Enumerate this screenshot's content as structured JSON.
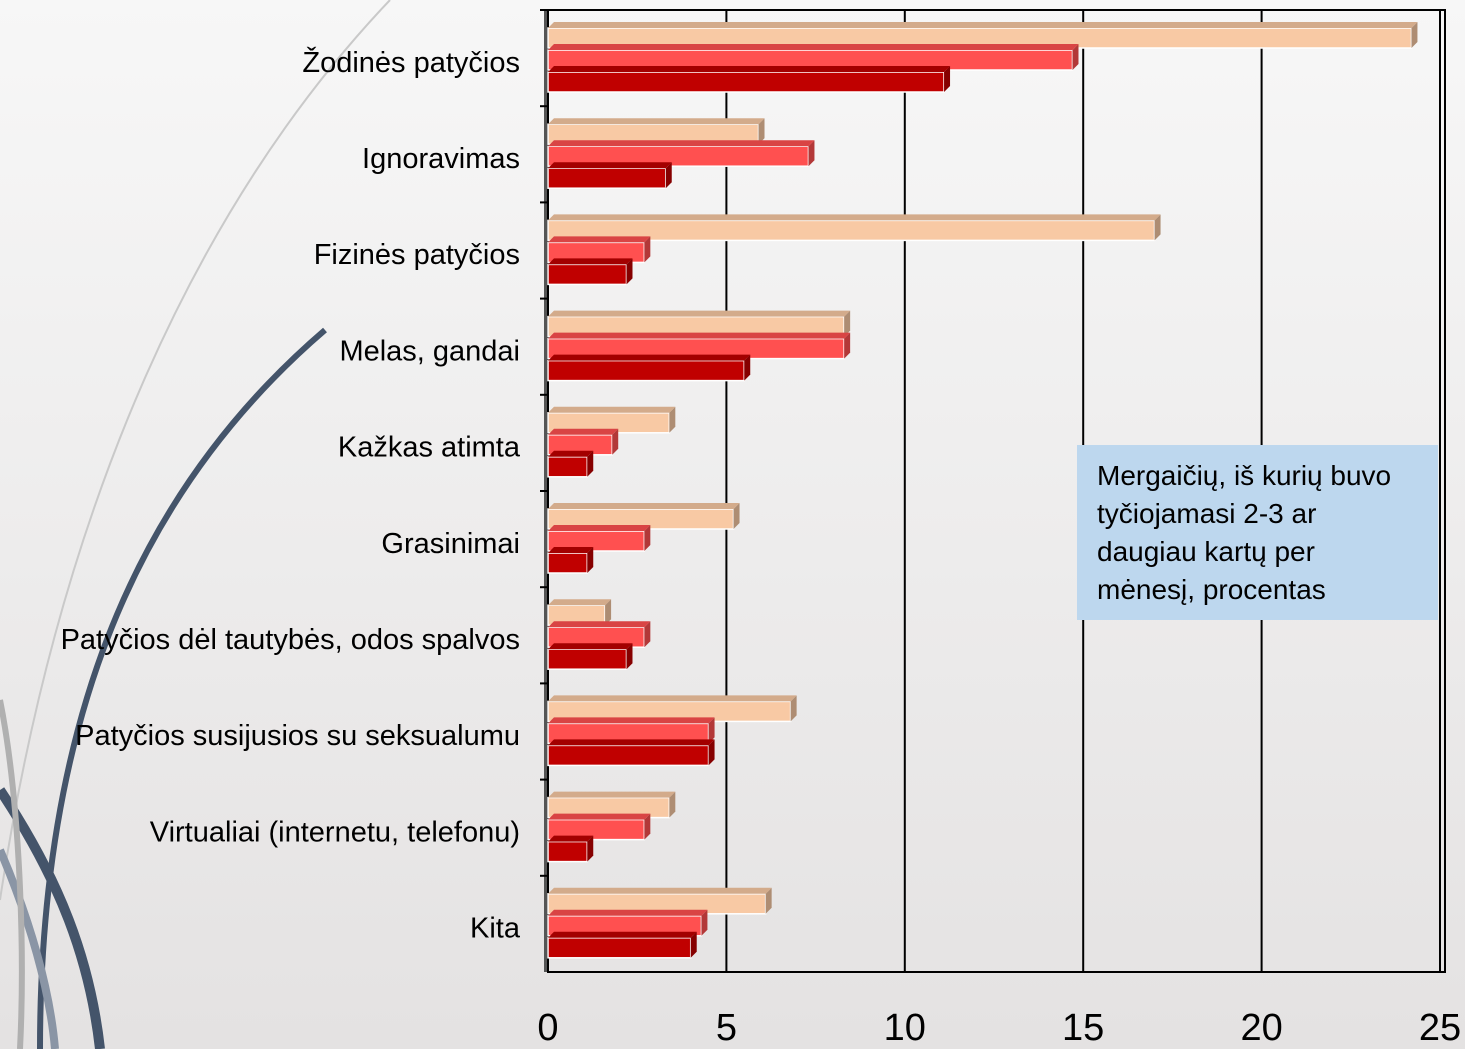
{
  "chart_data": {
    "type": "bar",
    "orientation": "horizontal",
    "categories": [
      "Žodinės patyčios",
      "Ignoravimas",
      "Fizinės patyčios",
      "Melas, gandai",
      "Kažkas atimta",
      "Grasinimai",
      "Patyčios dėl tautybės, odos spalvos",
      "Patyčios susijusios su seksualumu",
      "Virtualiai (internetu, telefonu)",
      "Kita"
    ],
    "series": [
      {
        "color": "#f8c9a4",
        "values": [
          24.2,
          5.9,
          17.0,
          8.3,
          3.4,
          5.2,
          1.6,
          6.8,
          3.4,
          6.1
        ]
      },
      {
        "color": "#ff5050",
        "values": [
          14.7,
          7.3,
          2.7,
          8.3,
          1.8,
          2.7,
          2.7,
          4.5,
          2.7,
          4.3
        ]
      },
      {
        "color": "#c00000",
        "values": [
          11.1,
          3.3,
          2.2,
          5.5,
          1.1,
          1.1,
          2.2,
          4.5,
          1.1,
          4.0
        ]
      }
    ],
    "xlim": [
      0,
      25
    ],
    "xticks": [
      0,
      5,
      10,
      15,
      20,
      25
    ],
    "grid": true,
    "annotation": "Mergaičių, iš kurių buvo tyčiojamasi 2-3 ar daugiau kartų per mėnesį, procentas"
  }
}
